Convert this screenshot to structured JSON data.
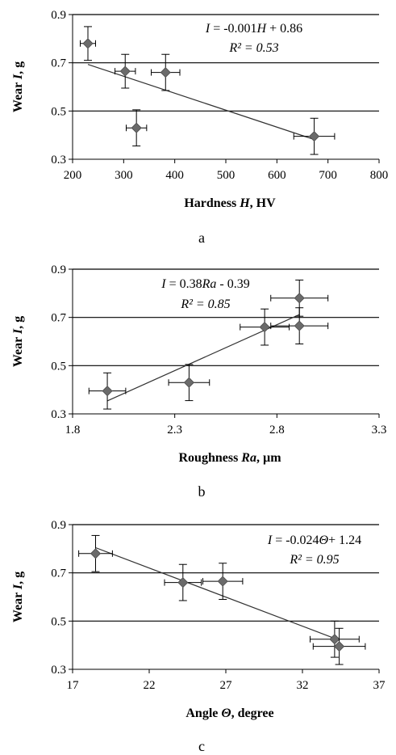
{
  "chart_data": [
    {
      "type": "scatter",
      "panel_label": "a",
      "xlabel_parts": [
        "Hardness ",
        "H",
        ", HV"
      ],
      "ylabel_parts": [
        "Wear ",
        "I",
        ", g"
      ],
      "xlim": [
        200,
        800
      ],
      "ylim": [
        0.3,
        0.9
      ],
      "x_ticks": [
        "200",
        "300",
        "400",
        "500",
        "600",
        "700",
        "800"
      ],
      "y_ticks": [
        "0.3",
        "0.5",
        "0.7",
        "0.9"
      ],
      "grid_y": [
        0.5,
        0.7,
        0.9
      ],
      "points": [
        {
          "x": 230,
          "y": 0.78,
          "xerr": 15,
          "yerr": 0.07
        },
        {
          "x": 303,
          "y": 0.665,
          "xerr": 20,
          "yerr": 0.07
        },
        {
          "x": 382,
          "y": 0.66,
          "xerr": 28,
          "yerr": 0.075
        },
        {
          "x": 325,
          "y": 0.43,
          "xerr": 20,
          "yerr": 0.075
        },
        {
          "x": 673,
          "y": 0.395,
          "xerr": 40,
          "yerr": 0.075
        }
      ],
      "trendline": {
        "x": [
          230,
          673
        ]
      },
      "equation_parts": [
        "I",
        " = -0.001",
        "H",
        " + 0.86"
      ],
      "r2": "R² = 0.53"
    },
    {
      "type": "scatter",
      "panel_label": "b",
      "xlabel_parts": [
        "Roughness ",
        "Ra",
        ", µm"
      ],
      "ylabel_parts": [
        "Wear ",
        "I",
        ", g"
      ],
      "xlim": [
        1.8,
        3.3
      ],
      "ylim": [
        0.3,
        0.9
      ],
      "x_ticks": [
        "1.8",
        "2.3",
        "2.8",
        "3.3"
      ],
      "y_ticks": [
        "0.3",
        "0.5",
        "0.7",
        "0.9"
      ],
      "grid_y": [
        0.5,
        0.7,
        0.9
      ],
      "points": [
        {
          "x": 1.97,
          "y": 0.395,
          "xerr": 0.09,
          "yerr": 0.075
        },
        {
          "x": 2.37,
          "y": 0.43,
          "xerr": 0.1,
          "yerr": 0.075
        },
        {
          "x": 2.74,
          "y": 0.66,
          "xerr": 0.12,
          "yerr": 0.075
        },
        {
          "x": 2.91,
          "y": 0.78,
          "xerr": 0.14,
          "yerr": 0.075
        },
        {
          "x": 2.91,
          "y": 0.665,
          "xerr": 0.14,
          "yerr": 0.075
        }
      ],
      "trendline": {
        "x": [
          1.97,
          2.91
        ]
      },
      "equation_parts": [
        "I",
        " = 0.38",
        "Ra",
        " - 0.39"
      ],
      "r2": "R² = 0.85"
    },
    {
      "type": "scatter",
      "panel_label": "c",
      "xlabel_parts": [
        "Angle ",
        "Θ",
        ", degree"
      ],
      "ylabel_parts": [
        "Wear ",
        "I",
        ", g"
      ],
      "xlim": [
        17,
        37
      ],
      "ylim": [
        0.3,
        0.9
      ],
      "x_ticks": [
        "17",
        "22",
        "27",
        "32",
        "37"
      ],
      "y_ticks": [
        "0.3",
        "0.5",
        "0.7",
        "0.9"
      ],
      "grid_y": [
        0.5,
        0.7,
        0.9
      ],
      "points": [
        {
          "x": 18.5,
          "y": 0.78,
          "xerr": 1.1,
          "yerr": 0.075
        },
        {
          "x": 24.2,
          "y": 0.66,
          "xerr": 1.2,
          "yerr": 0.075
        },
        {
          "x": 26.8,
          "y": 0.665,
          "xerr": 1.3,
          "yerr": 0.075
        },
        {
          "x": 34.1,
          "y": 0.425,
          "xerr": 1.6,
          "yerr": 0.075
        },
        {
          "x": 34.4,
          "y": 0.395,
          "xerr": 1.7,
          "yerr": 0.075
        }
      ],
      "trendline": {
        "x": [
          18.5,
          34.4
        ]
      },
      "equation_parts": [
        "I",
        " = -0.024",
        "Θ",
        "+ 1.24"
      ],
      "r2": "R² = 0.95"
    }
  ]
}
